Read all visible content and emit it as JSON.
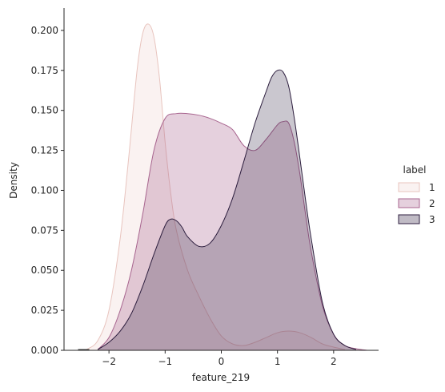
{
  "chart_data": {
    "type": "area",
    "xlabel": "feature_219",
    "ylabel": "Density",
    "xlim": [
      -2.8,
      2.8
    ],
    "ylim": [
      0,
      0.214
    ],
    "xticks": [
      -2,
      -1,
      0,
      1,
      2
    ],
    "xtick_labels": [
      "−2",
      "−1",
      "0",
      "1",
      "2"
    ],
    "yticks": [
      0,
      0.025,
      0.05,
      0.075,
      0.1,
      0.125,
      0.15,
      0.175,
      0.2
    ],
    "ytick_labels": [
      "0.000",
      "0.025",
      "0.050",
      "0.075",
      "0.100",
      "0.125",
      "0.150",
      "0.175",
      "0.200"
    ],
    "grid": false,
    "legend": {
      "title": "label",
      "placement": "right"
    },
    "rug": [
      -2.55,
      -2.35
    ],
    "series": [
      {
        "name": "1",
        "fill": "#efd3cf",
        "line": "#e8c4be",
        "fill_opacity": 0.3,
        "x": [
          -2.4,
          -2.2,
          -2.0,
          -1.8,
          -1.65,
          -1.5,
          -1.4,
          -1.3,
          -1.2,
          -1.1,
          -1.0,
          -0.9,
          -0.8,
          -0.6,
          -0.4,
          -0.2,
          0.0,
          0.2,
          0.4,
          0.6,
          0.8,
          1.0,
          1.2,
          1.4,
          1.6,
          1.8,
          2.0,
          2.2
        ],
        "y": [
          0.0005,
          0.006,
          0.025,
          0.07,
          0.12,
          0.175,
          0.198,
          0.204,
          0.196,
          0.17,
          0.13,
          0.098,
          0.075,
          0.05,
          0.034,
          0.02,
          0.009,
          0.004,
          0.003,
          0.005,
          0.008,
          0.011,
          0.012,
          0.011,
          0.008,
          0.004,
          0.002,
          0.0005
        ]
      },
      {
        "name": "2",
        "fill": "#a8658f",
        "line": "#a8658f",
        "fill_opacity": 0.3,
        "x": [
          -2.2,
          -2.0,
          -1.8,
          -1.6,
          -1.4,
          -1.2,
          -1.0,
          -0.8,
          -0.6,
          -0.4,
          -0.2,
          0.0,
          0.2,
          0.4,
          0.6,
          0.8,
          1.0,
          1.1,
          1.2,
          1.3,
          1.4,
          1.5,
          1.6,
          1.8,
          2.0,
          2.2,
          2.4,
          2.6
        ],
        "y": [
          0.0005,
          0.008,
          0.025,
          0.05,
          0.085,
          0.125,
          0.145,
          0.148,
          0.148,
          0.147,
          0.145,
          0.142,
          0.138,
          0.128,
          0.125,
          0.132,
          0.141,
          0.143,
          0.142,
          0.13,
          0.11,
          0.085,
          0.062,
          0.028,
          0.01,
          0.003,
          0.001,
          0.0
        ]
      },
      {
        "name": "3",
        "fill": "#2d1e3e",
        "line": "#2d1e3e",
        "fill_opacity": 0.25,
        "x": [
          -2.2,
          -2.0,
          -1.8,
          -1.6,
          -1.4,
          -1.2,
          -1.0,
          -0.9,
          -0.8,
          -0.7,
          -0.6,
          -0.4,
          -0.2,
          0.0,
          0.2,
          0.4,
          0.6,
          0.8,
          0.9,
          1.0,
          1.1,
          1.2,
          1.3,
          1.4,
          1.5,
          1.6,
          1.8,
          2.0,
          2.2,
          2.4
        ],
        "y": [
          0.0005,
          0.005,
          0.012,
          0.023,
          0.04,
          0.06,
          0.078,
          0.082,
          0.081,
          0.077,
          0.071,
          0.065,
          0.067,
          0.078,
          0.095,
          0.118,
          0.142,
          0.162,
          0.171,
          0.175,
          0.174,
          0.165,
          0.145,
          0.12,
          0.094,
          0.07,
          0.03,
          0.01,
          0.003,
          0.0005
        ]
      }
    ]
  }
}
